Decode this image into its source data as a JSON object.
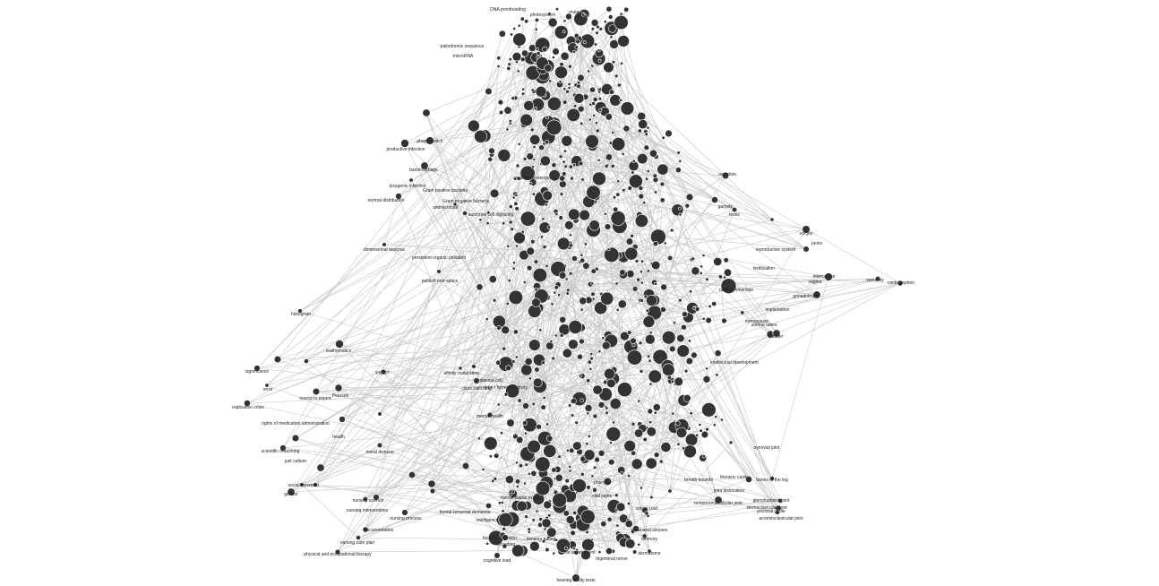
{
  "graph": {
    "type": "network",
    "node_color": "#333333",
    "edge_color": "#c8c8c8",
    "background": "#ffffff",
    "labels": [
      "DNA proofreading",
      "photosystem",
      "mutant",
      "palindromic sequence",
      "microRNA",
      "phage switch",
      "productive infection",
      "bacteriophage",
      "lysogenic infection",
      "normal distribution",
      "Gram positive bacteria",
      "Gram negative bacteria",
      "antimicrobial",
      "autocrine cell signaling",
      "dimensional analysis",
      "persistent organic pollutant",
      "publish non-space",
      "second messenger",
      "histogram",
      "mathematics",
      "significance",
      "error",
      "replication crisis",
      "novice to expert",
      "Pearson",
      "PICOT",
      "affinity maturation",
      "plasma cell",
      "class switching",
      "type I hypersensitivity",
      "mental health",
      "rights of medication administration",
      "health",
      "moral distress",
      "scientific reasoning",
      "just culture",
      "social construct",
      "gender",
      "nursing science",
      "nursing interventions",
      "nursing care plan",
      "physical and occupational therapy",
      "nursing process",
      "documentation",
      "intelligence",
      "focused attention",
      "encoding",
      "cognitive load",
      "frontal-temporal dementia",
      "mental status exam",
      "trigeminal nerve",
      "ear assessment",
      "hearing acuity tests",
      "dermatome",
      "spinal cord",
      "paranasal sinuses",
      "temporomandibular joint",
      "joint dislocation",
      "sternoclavicular joint",
      "acromioclavicular joint",
      "pectoral girdle",
      "bones of the leg",
      "glenohumeral joint",
      "breath sounds",
      "thoracic cavity",
      "ovulation",
      "oocyte",
      "penis",
      "fertilization",
      "vagina",
      "intercourse",
      "sexuality",
      "contraception",
      "implantation",
      "uterine tubes",
      "bladder",
      "menopause",
      "nuclear envelope",
      "reproductive system",
      "gamete",
      "testis",
      "gonadotropin",
      "intellectual development",
      "memory",
      "pharynx",
      "synovial joint",
      "vital signs",
      "sensory gating"
    ]
  }
}
